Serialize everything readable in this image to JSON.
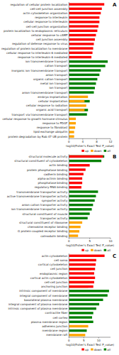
{
  "chart_data": [
    {
      "type": "bar",
      "orientation": "horizontal",
      "title": "A",
      "xlabel": "-log10(Fisher's Exact Test P_value)",
      "xlim": [
        0,
        12
      ],
      "xticks": [
        0,
        4,
        8,
        12
      ],
      "legend": "lower right",
      "categories": [
        "regulation of cellular protein localization",
        "cell-cell junction assembly",
        "actin cytoskeleton organization",
        "response to interleukin",
        "cellular response to interleukin",
        "cell-cell junction organization",
        "protein localization to endoplasmic reticulum",
        "cellular response to cAMP",
        "cell junction assembly",
        "regulation of defense response to virus",
        "regulation of protein localization to membrane",
        "cellular response to interleukin-6 mediated",
        "response to interleukin-6 mediated",
        "ion transmembrane transport",
        "cation transport",
        "inorganic ion transmembrane transport",
        "anion transport",
        "organic cation transport",
        "metal ion transport",
        "ion transport",
        "anion transmembrane transport",
        "embryo implantation",
        "cellular implantation",
        "cellular response to radiation",
        "organic acid transport",
        "transport via transmembrane transport",
        "cellular response to growth hormone stimulus",
        "response to PDGF",
        "response to fibroblast",
        "lipid exchange ubiquitin",
        "protein degradation by Rab 47 UB protein"
      ],
      "series": [
        {
          "name": "up",
          "color": "#FF0000",
          "values": [
            10.2,
            9.5,
            9.2,
            8.8,
            8.8,
            8.5,
            8.2,
            7.8,
            7.5,
            7.2,
            7.0,
            6.8,
            6.5,
            0,
            0,
            0,
            0,
            0,
            0,
            0,
            0,
            0,
            0,
            0,
            0,
            0,
            0,
            0,
            0,
            0,
            0
          ]
        },
        {
          "name": "down",
          "color": "#FFA500",
          "values": [
            0,
            0,
            0,
            0,
            0,
            0,
            0,
            0,
            0,
            0,
            0,
            0,
            0,
            0,
            0,
            0,
            0,
            0,
            0,
            0,
            0,
            5.5,
            4.5,
            5.0,
            4.5,
            0,
            2.0,
            2.0,
            1.8,
            1.5,
            1.5
          ]
        },
        {
          "name": "all",
          "color": "#008000",
          "values": [
            0,
            0,
            0,
            0,
            0,
            0,
            0,
            0,
            0,
            0,
            0,
            0,
            0,
            11.2,
            10.5,
            9.2,
            8.8,
            8.2,
            7.8,
            7.5,
            7.2,
            0,
            6.0,
            0,
            5.5,
            5.2,
            0,
            0,
            0,
            0,
            0
          ]
        }
      ]
    },
    {
      "type": "bar",
      "orientation": "horizontal",
      "title": "B",
      "xlabel": "-log10(Fisher's Exact Test P_value)",
      "xlim": [
        0,
        10
      ],
      "xticks": [
        0,
        5,
        10
      ],
      "legend": "lower right",
      "categories": [
        "structural molecule activity",
        "structural constituent of cytoskeleton",
        "actin binding",
        "protein phosphatase binding",
        "cadherin binding",
        "alpha-actinin binding",
        "phosphatase binding",
        "regulatory RNA binding",
        "transmembrane transporter activity",
        "active transmembrane transporter activity",
        "symporter activity",
        "anion cation transporter activity",
        "ion transmembrane transporter activity",
        "structural constituent of muscle",
        "transporter activity",
        "structural constituent of ribosome",
        "chemokine receptor binding",
        "G protein-coupled receptor binding",
        "calmodulin binding"
      ],
      "series": [
        {
          "name": "up",
          "color": "#FF0000",
          "values": [
            8.2,
            0,
            5.0,
            4.0,
            3.5,
            3.2,
            3.2,
            3.0,
            0,
            0,
            0,
            0,
            0,
            0,
            0,
            0,
            0,
            0,
            0
          ]
        },
        {
          "name": "down",
          "color": "#FFA500",
          "values": [
            0,
            0,
            0,
            0,
            0,
            0,
            0,
            0,
            0,
            0,
            0,
            0,
            0,
            0,
            0,
            3.2,
            2.8,
            2.5,
            2.2
          ]
        },
        {
          "name": "all",
          "color": "#008000",
          "values": [
            8.5,
            7.8,
            0,
            0,
            0,
            0,
            0,
            0,
            7.0,
            6.5,
            6.2,
            5.8,
            5.5,
            5.0,
            4.5,
            0,
            0,
            0,
            0
          ]
        }
      ]
    },
    {
      "type": "bar",
      "orientation": "horizontal",
      "title": "C",
      "xlabel": "-log10(Fisher's Exact Test P_value)",
      "xlim": [
        0,
        14
      ],
      "xticks": [
        0,
        5,
        10
      ],
      "legend": "lower right",
      "categories": [
        "actin cytoskeleton",
        "cell soma",
        "cortical cytoskeleton",
        "cell junction",
        "endoplasmic region",
        "cortical actin cytoskeleton",
        "cell-cell junction",
        "anchoring junction",
        "intrinsic component of membrane",
        "integral component of membrane",
        "basolateral plasma membrane",
        "integral component of plasma membrane",
        "intrinsic component of plasma membrane",
        "contractile fiber",
        "cell cortex",
        "plasma membrane region",
        "adherens junction",
        "membrane region",
        "membrane raft"
      ],
      "series": [
        {
          "name": "up",
          "color": "#FF0000",
          "values": [
            12.0,
            9.2,
            9.0,
            8.8,
            8.5,
            8.8,
            8.5,
            8.2,
            0,
            0,
            0,
            0,
            0,
            0,
            0,
            0,
            0,
            0,
            0
          ]
        },
        {
          "name": "down",
          "color": "#FFA500",
          "values": [
            0,
            0,
            0,
            7.5,
            0,
            0,
            7.0,
            6.5,
            0,
            0,
            0,
            0,
            0,
            0,
            0,
            0,
            6.5,
            0,
            5.5
          ]
        },
        {
          "name": "all",
          "color": "#008000",
          "values": [
            0,
            0,
            0,
            0,
            0,
            0,
            0,
            0,
            13.5,
            13.0,
            11.5,
            10.2,
            9.2,
            8.2,
            7.8,
            8.2,
            0,
            6.0,
            0
          ]
        }
      ]
    }
  ]
}
